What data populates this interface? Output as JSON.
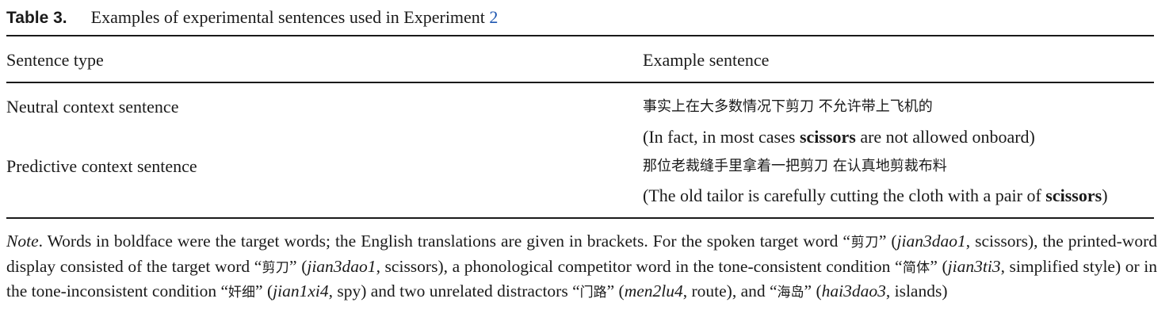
{
  "table": {
    "label": "Table 3.",
    "caption_text": "Examples of experimental sentences used in Experiment ",
    "caption_link": "2",
    "columns": [
      "Sentence type",
      "Example sentence"
    ],
    "rows": [
      {
        "type": "Neutral context sentence",
        "chinese": "事实上在大多数情况下剪刀 不允许带上飞机的",
        "english_before": "(In fact, in most cases ",
        "english_bold": "scissors",
        "english_after": " are not allowed onboard)"
      },
      {
        "type": "Predictive context sentence",
        "chinese": "那位老裁缝手里拿着一把剪刀 在认真地剪裁布料",
        "english_before": "(The old tailor is carefully cutting the cloth with a pair of ",
        "english_bold": "scissors",
        "english_after": ")"
      }
    ]
  },
  "note": {
    "label": "Note",
    "t1": ". Words in boldface were the target words; the English translations are given in brackets. For the spoken target word “",
    "w1": "剪刀",
    "t2": "” (",
    "p1": "jian3dao1",
    "t3": ", scissors), the printed-word display consisted of the target word “",
    "w2": "剪刀",
    "t4": "” (",
    "p2": "jian3dao1",
    "t5": ", scissors), a phonological competitor word in the tone-consistent condition “",
    "w3": "简体",
    "t6": "” (",
    "p3": "jian3ti3",
    "t7": ", simplified style) or in the tone-inconsistent condition “",
    "w4": "奸细",
    "t8": "” (",
    "p4": "jian1xi4",
    "t9": ", spy) and two unrelated distractors “",
    "w5": "门路",
    "t10": "” (",
    "p5": "men2lu4",
    "t11": ", route), and “",
    "w6": "海岛",
    "t12": "” (",
    "p6": "hai3dao3",
    "t13": ", islands)"
  }
}
